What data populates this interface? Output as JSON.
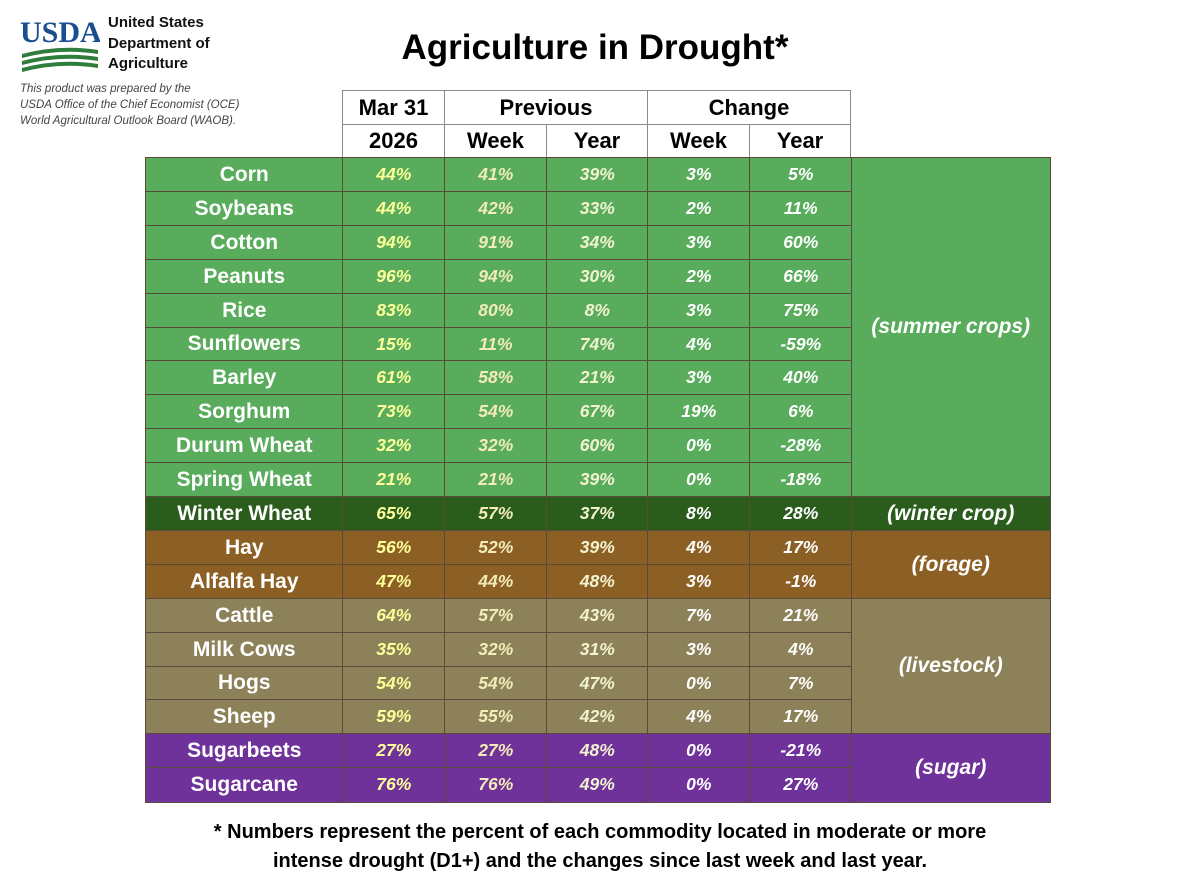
{
  "header": {
    "org_lines": [
      "United States",
      "Department of",
      "Agriculture"
    ],
    "logo_text": "USDA",
    "credit_lines": [
      "This product was prepared by the",
      "USDA Office of the Chief Economist (OCE)",
      "World Agricultural Outlook Board (WAOB)."
    ],
    "title": "Agriculture in Drought*"
  },
  "table": {
    "header_row1": [
      "Mar 31",
      "Previous",
      "Change"
    ],
    "header_row2": [
      "2026",
      "Week",
      "Year",
      "Week",
      "Year"
    ],
    "rows": [
      {
        "name": "Corn",
        "values": [
          "44%",
          "41%",
          "39%",
          "3%",
          "5%"
        ]
      },
      {
        "name": "Soybeans",
        "values": [
          "44%",
          "42%",
          "33%",
          "2%",
          "11%"
        ]
      },
      {
        "name": "Cotton",
        "values": [
          "94%",
          "91%",
          "34%",
          "3%",
          "60%"
        ]
      },
      {
        "name": "Peanuts",
        "values": [
          "96%",
          "94%",
          "30%",
          "2%",
          "66%"
        ]
      },
      {
        "name": "Rice",
        "values": [
          "83%",
          "80%",
          "8%",
          "3%",
          "75%"
        ]
      },
      {
        "name": "Sunflowers",
        "values": [
          "15%",
          "11%",
          "74%",
          "4%",
          "-59%"
        ]
      },
      {
        "name": "Barley",
        "values": [
          "61%",
          "58%",
          "21%",
          "3%",
          "40%"
        ]
      },
      {
        "name": "Sorghum",
        "values": [
          "73%",
          "54%",
          "67%",
          "19%",
          "6%"
        ]
      },
      {
        "name": "Durum Wheat",
        "values": [
          "32%",
          "32%",
          "60%",
          "0%",
          "-28%"
        ]
      },
      {
        "name": "Spring Wheat",
        "values": [
          "21%",
          "21%",
          "39%",
          "0%",
          "-18%"
        ]
      },
      {
        "name": "Winter Wheat",
        "values": [
          "65%",
          "57%",
          "37%",
          "8%",
          "28%"
        ]
      },
      {
        "name": "Hay",
        "values": [
          "56%",
          "52%",
          "39%",
          "4%",
          "17%"
        ]
      },
      {
        "name": "Alfalfa Hay",
        "values": [
          "47%",
          "44%",
          "48%",
          "3%",
          "-1%"
        ]
      },
      {
        "name": "Cattle",
        "values": [
          "64%",
          "57%",
          "43%",
          "7%",
          "21%"
        ]
      },
      {
        "name": "Milk Cows",
        "values": [
          "35%",
          "32%",
          "31%",
          "3%",
          "4%"
        ]
      },
      {
        "name": "Hogs",
        "values": [
          "54%",
          "54%",
          "47%",
          "0%",
          "7%"
        ]
      },
      {
        "name": "Sheep",
        "values": [
          "59%",
          "55%",
          "42%",
          "4%",
          "17%"
        ]
      },
      {
        "name": "Sugarbeets",
        "values": [
          "27%",
          "27%",
          "48%",
          "0%",
          "-21%"
        ]
      },
      {
        "name": "Sugarcane",
        "values": [
          "76%",
          "76%",
          "49%",
          "0%",
          "27%"
        ]
      }
    ],
    "groups": [
      {
        "label": "(summer crops)",
        "bg": "#58ac5c",
        "rows": [
          0,
          9
        ]
      },
      {
        "label": "(winter crop)",
        "bg": "#2a5c1c",
        "rows": [
          10,
          10
        ]
      },
      {
        "label": "(forage)",
        "bg": "#8c6024",
        "rows": [
          11,
          12
        ]
      },
      {
        "label": "(livestock)",
        "bg": "#8c8158",
        "rows": [
          13,
          16
        ]
      },
      {
        "label": "(sugar)",
        "bg": "#6e329a",
        "rows": [
          17,
          18
        ]
      }
    ],
    "colors": {
      "summer_bg": "#58ac5c",
      "winter_bg": "#2a5c1c",
      "forage_bg": "#8c6024",
      "livestock_bg": "#8c8158",
      "sugar_bg": "#6e329a",
      "mar31_text": "#ffff99",
      "week_text": "#f3ebb8",
      "year_text": "#f3f3d0",
      "change_text": "#ffffff",
      "cell_border": "#5a4a3a"
    }
  },
  "footnote_lines": [
    "* Numbers represent the percent of each commodity located in moderate or more",
    "intense drought (D1+) and the changes since last week and last year."
  ]
}
